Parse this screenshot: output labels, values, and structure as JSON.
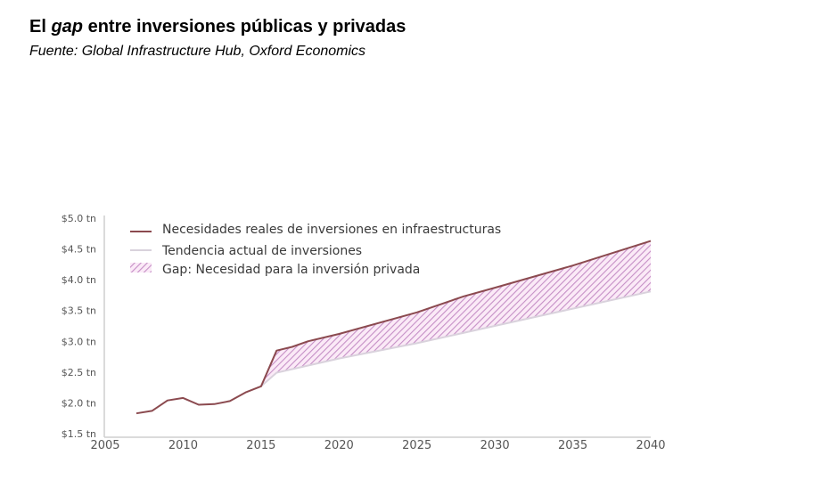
{
  "header": {
    "title_prefix": "El ",
    "title_italic": "gap",
    "title_suffix": " entre inversiones públicas y privadas",
    "source": "Fuente: Global Infrastructure Hub, Oxford Economics"
  },
  "chart_data": {
    "type": "area",
    "title": "El gap entre inversiones públicas y privadas",
    "subtitle": "Fuente: Global Infrastructure Hub, Oxford Economics",
    "xlabel": "",
    "ylabel": "",
    "xlim": [
      2005,
      2040
    ],
    "ylim": [
      1.5,
      5.0
    ],
    "x_ticks": [
      2005,
      2010,
      2015,
      2020,
      2025,
      2030,
      2035,
      2040
    ],
    "x_tick_labels": [
      "2005",
      "2010",
      "2015",
      "2020",
      "2025",
      "2030",
      "2035",
      "2040"
    ],
    "y_ticks": [
      1.5,
      2.0,
      2.5,
      3.0,
      3.5,
      4.0,
      4.5,
      5.0
    ],
    "y_tick_labels": [
      "$1.5 tn",
      "$2.0 tn",
      "$2.5 tn",
      "$3.0 tn",
      "$3.5 tn",
      "$4.0 tn",
      "$4.5 tn",
      "$5.0 tn"
    ],
    "grid": false,
    "legend_position": "top-left",
    "series": [
      {
        "name": "Necesidades reales de inversiones en infraestructuras",
        "color": "#8b4a4f",
        "x": [
          2007,
          2008,
          2009,
          2010,
          2011,
          2012,
          2013,
          2014,
          2015,
          2016,
          2017,
          2018,
          2020,
          2025,
          2028,
          2030,
          2035,
          2040
        ],
        "values": [
          1.83,
          1.87,
          2.04,
          2.08,
          1.97,
          1.98,
          2.03,
          2.17,
          2.27,
          2.85,
          2.91,
          3.0,
          3.12,
          3.47,
          3.73,
          3.87,
          4.23,
          4.63
        ]
      },
      {
        "name": "Tendencia actual de inversiones",
        "color": "#d9d2dc",
        "x": [
          2015,
          2016,
          2020,
          2025,
          2030,
          2035,
          2040
        ],
        "values": [
          2.27,
          2.49,
          2.72,
          2.97,
          3.25,
          3.53,
          3.81
        ]
      }
    ],
    "gap_area": {
      "name": "Gap: Necesidad para la inversión privada",
      "color": "#c58fc6",
      "between": [
        "Necesidades reales de inversiones en infraestructuras",
        "Tendencia actual de inversiones"
      ],
      "x_start": 2015,
      "x_end": 2040
    }
  }
}
